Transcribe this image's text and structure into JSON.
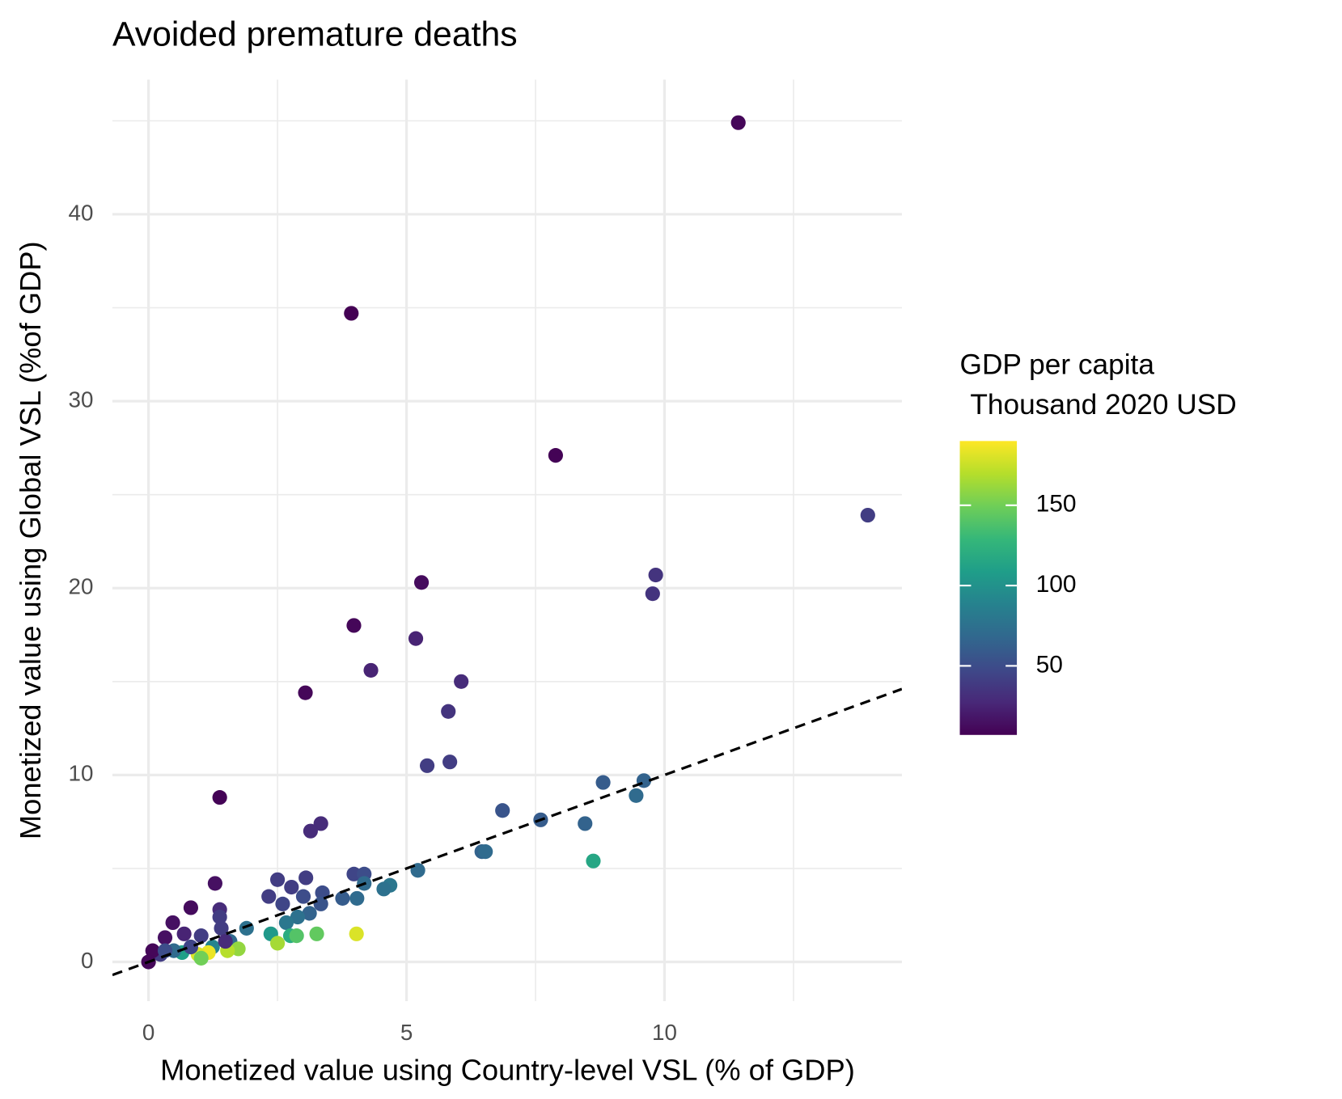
{
  "chart_data": {
    "type": "scatter",
    "title": "Avoided premature deaths",
    "x_label": "Monetized value using Country-level VSL (% of GDP)",
    "y_label": "Monetized value using Global VSL (%of GDP)",
    "xlim": [
      -0.7,
      14.6
    ],
    "ylim": [
      -2.1,
      47.2
    ],
    "xticks": [
      0,
      5,
      10
    ],
    "yticks": [
      0,
      10,
      20,
      30,
      40
    ],
    "xminorticks": [
      2.5,
      7.5,
      12.5
    ],
    "yminorticks": [
      5,
      15,
      25,
      35,
      45
    ],
    "grid": true,
    "reference_line": {
      "slope": 1,
      "intercept": 0,
      "style": "dashed",
      "color": "#000000"
    },
    "colormap": "viridis",
    "colorbar": {
      "title": [
        "GDP per capita",
        "Thousand 2020 USD"
      ],
      "lim": [
        7,
        190
      ],
      "ticks": [
        50,
        100,
        150
      ],
      "position": "right"
    },
    "x": [
      11.43,
      3.93,
      7.89,
      13.94,
      9.83,
      9.77,
      5.29,
      3.98,
      5.18,
      4.31,
      6.06,
      3.04,
      5.81,
      5.4,
      5.84,
      1.38,
      8.81,
      9.6,
      9.45,
      6.86,
      7.6,
      8.46,
      3.34,
      3.14,
      6.46,
      6.53,
      8.62,
      5.22,
      3.98,
      4.18,
      3.05,
      2.5,
      4.18,
      4.68,
      4.56,
      2.77,
      3.37,
      4.04,
      3.76,
      3.0,
      2.33,
      2.6,
      3.34,
      3.12,
      2.89,
      2.67,
      1.9,
      2.37,
      2.75,
      2.87,
      3.26,
      4.03,
      2.5,
      1.29,
      0.82,
      1.38,
      0.47,
      1.38,
      0.32,
      0.69,
      1.02,
      1.41,
      1.58,
      1.24,
      1.74,
      1.53,
      1.16,
      0.96,
      0.65,
      0.49,
      0.23,
      0.08,
      0.0,
      0.32,
      0.82,
      1.49,
      1.02
    ],
    "values": [
      44.9,
      34.7,
      27.1,
      23.9,
      20.7,
      19.7,
      20.3,
      18.0,
      17.3,
      15.6,
      15.0,
      14.4,
      13.4,
      10.5,
      10.7,
      8.8,
      9.6,
      9.7,
      8.9,
      8.1,
      7.6,
      7.4,
      7.4,
      7.0,
      5.9,
      5.9,
      5.4,
      4.9,
      4.7,
      4.7,
      4.5,
      4.4,
      4.2,
      4.1,
      3.9,
      4.0,
      3.7,
      3.4,
      3.4,
      3.5,
      3.5,
      3.1,
      3.1,
      2.6,
      2.4,
      2.1,
      1.8,
      1.5,
      1.4,
      1.4,
      1.5,
      1.5,
      1.0,
      4.2,
      2.9,
      2.8,
      2.1,
      2.4,
      1.3,
      1.5,
      1.4,
      1.8,
      1.1,
      0.8,
      0.7,
      0.6,
      0.5,
      0.4,
      0.5,
      0.6,
      0.4,
      0.6,
      0.0,
      0.6,
      0.8,
      1.1,
      0.2
    ],
    "color_values": [
      10,
      5,
      8,
      40,
      35,
      35,
      12,
      10,
      25,
      25,
      30,
      10,
      35,
      40,
      40,
      8,
      60,
      65,
      70,
      55,
      60,
      65,
      30,
      30,
      65,
      70,
      115,
      70,
      45,
      50,
      40,
      40,
      70,
      80,
      75,
      40,
      50,
      70,
      60,
      50,
      40,
      45,
      55,
      65,
      75,
      80,
      75,
      105,
      120,
      140,
      145,
      180,
      165,
      15,
      12,
      30,
      15,
      40,
      15,
      25,
      40,
      40,
      70,
      90,
      160,
      170,
      185,
      180,
      110,
      70,
      40,
      10,
      10,
      50,
      45,
      30,
      150
    ]
  }
}
